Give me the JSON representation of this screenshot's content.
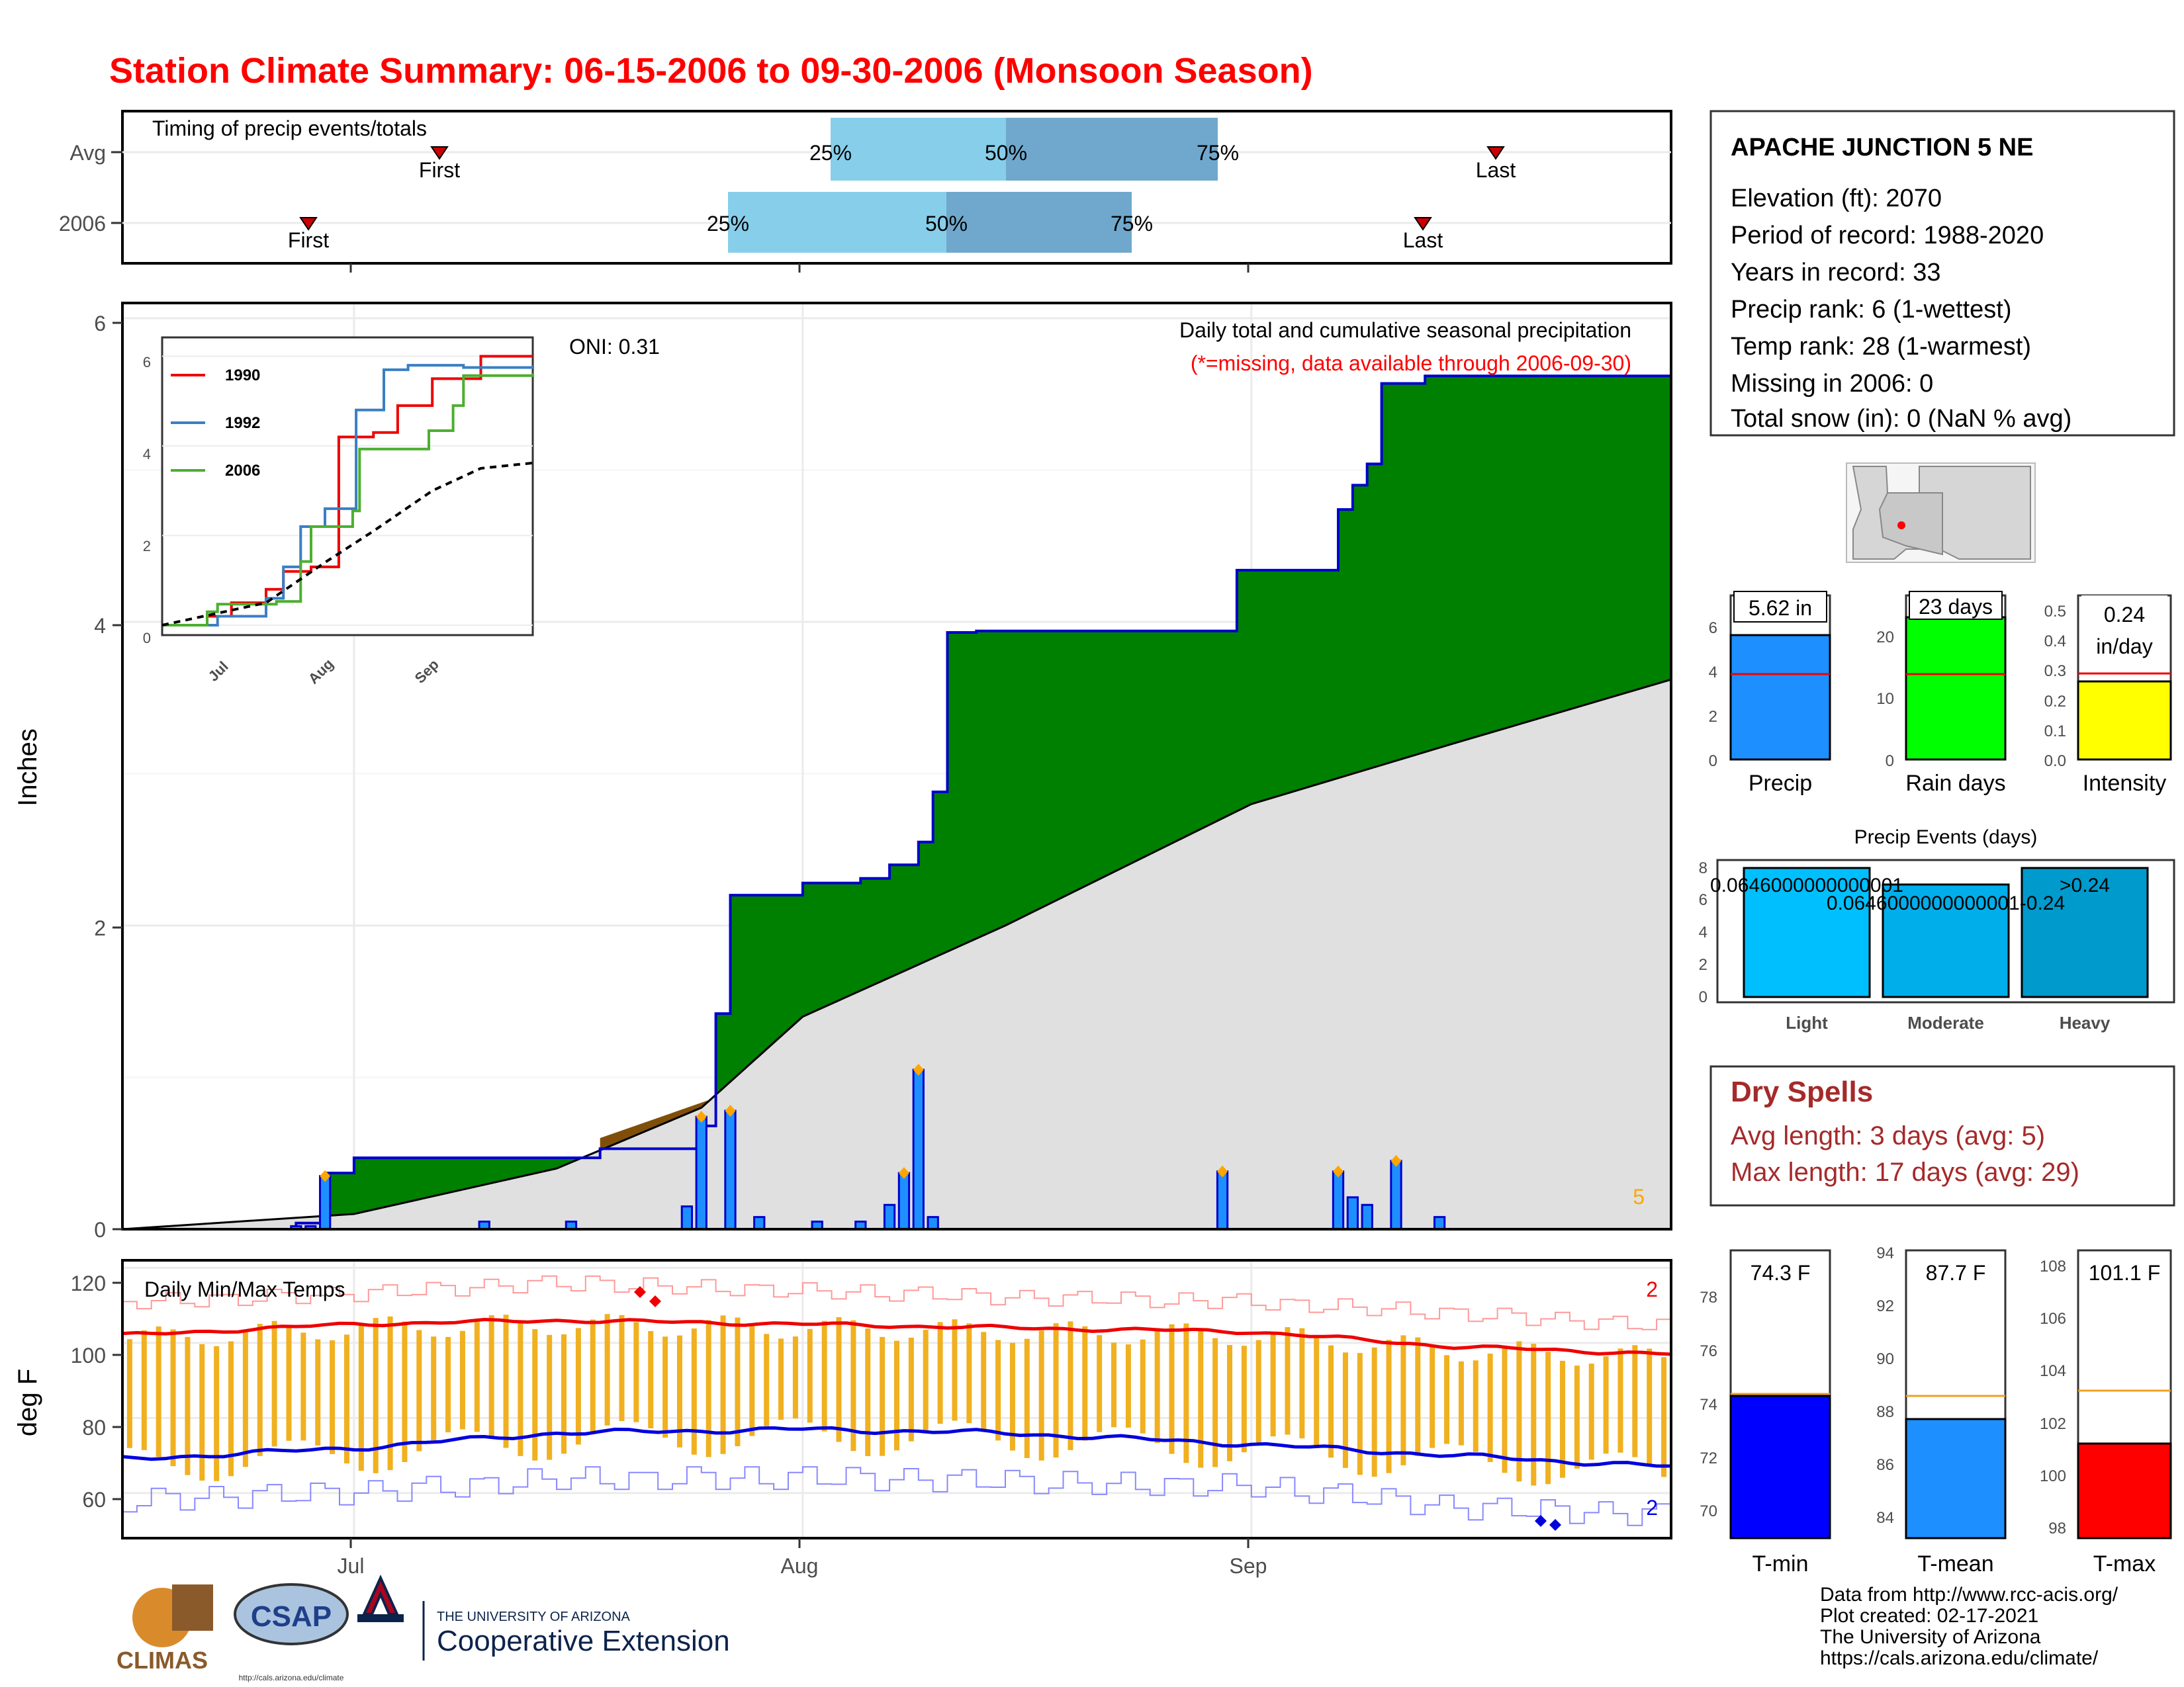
{
  "page_title": "Station Climate Summary: 06-15-2006 to 09-30-2006 (Monsoon Season)",
  "colors": {
    "title": "#ff0000",
    "cumulative_fill": "#008000",
    "deficit_fill": "#7f4f0a",
    "average_fill": "#e0e0e0",
    "daily_bar": "#1e8fff",
    "temp_bar": "#f0b020",
    "tmax_line": "#ee0000",
    "tmin_line": "#0000dd",
    "quartile_light": "#87ceeb",
    "quartile_dark": "#6fa8cc",
    "dry_spell_text": "#a52a2a"
  },
  "timing_panel": {
    "title": "Timing of precip events/totals",
    "row_labels": [
      "Avg",
      "2006"
    ],
    "avg": {
      "q25": "25%",
      "q50": "50%",
      "q75": "75%",
      "first": "First",
      "last": "Last"
    },
    "year": {
      "q25": "25%",
      "q50": "50%",
      "q75": "75%",
      "first": "First",
      "last": "Last"
    }
  },
  "precip_panel": {
    "ylabel": "Inches",
    "oni": "ONI: 0.31",
    "caption": "Daily total and cumulative seasonal precipitation",
    "subcaption": "(*=missing, data available through 2006-09-30)",
    "count_label": "5",
    "yticks": [
      "0",
      "2",
      "4",
      "6"
    ],
    "inset_legend": [
      "1990",
      "1992",
      "2006"
    ],
    "inset_yticks": [
      "0",
      "2",
      "4",
      "6"
    ],
    "inset_xticks": [
      "Jul",
      "Aug",
      "Sep"
    ]
  },
  "temp_panel": {
    "title": "Daily Min/Max Temps",
    "ylabel": "deg F",
    "yticks": [
      "60",
      "80",
      "100",
      "120"
    ],
    "record_high_count": "2",
    "record_low_count": "2"
  },
  "x_axis": {
    "labels": [
      "Jul",
      "Aug",
      "Sep"
    ]
  },
  "station": {
    "name": "APACHE JUNCTION 5 NE",
    "lines": [
      "Elevation (ft): 2070",
      "Period of record: 1988-2020",
      "Years in record: 33",
      "Precip rank: 6 (1-wettest)",
      "Temp rank: 28 (1-warmest)",
      "Missing in 2006: 0",
      "Total snow (in): 0 (NaN % avg)"
    ]
  },
  "summary_bars": {
    "precip": {
      "label": "Precip",
      "value_text": "5.62 in",
      "yticks": [
        "0",
        "2",
        "4",
        "6"
      ]
    },
    "rain_days": {
      "label": "Rain days",
      "value_text": "23 days",
      "yticks": [
        "0",
        "10",
        "20"
      ]
    },
    "intensity": {
      "label": "Intensity",
      "value_text": "0.24",
      "unit": "in/day",
      "yticks": [
        "0.0",
        "0.1",
        "0.2",
        "0.3",
        "0.4",
        "0.5"
      ]
    }
  },
  "events_panel": {
    "title": "Precip Events (days)",
    "yticks": [
      "0",
      "2",
      "4",
      "6",
      "8"
    ],
    "categories": [
      "Light",
      "Moderate",
      "Heavy"
    ],
    "bar_labels": [
      "0.0646000000000001",
      "0.0646000000000001-0.24",
      ">0.24"
    ]
  },
  "dry_spells": {
    "title": "Dry Spells",
    "avg": "Avg length: 3 days (avg: 5)",
    "max": "Max length: 17 days (avg: 29)"
  },
  "temp_bars": {
    "tmin": {
      "label": "T-min",
      "value_text": "74.3 F",
      "yticks": [
        "70",
        "72",
        "74",
        "76",
        "78"
      ]
    },
    "tmean": {
      "label": "T-mean",
      "value_text": "87.7 F",
      "yticks": [
        "84",
        "86",
        "88",
        "90",
        "92",
        "94"
      ]
    },
    "tmax": {
      "label": "T-max",
      "value_text": "101.1 F",
      "yticks": [
        "98",
        "100",
        "102",
        "104",
        "106",
        "108"
      ]
    }
  },
  "logos": {
    "climas": "CLIMAS",
    "csap": "CSAP",
    "csap_url": "http://cals.arizona.edu/climate",
    "ua_small": "THE UNIVERSITY OF ARIZONA",
    "ua_big": "Cooperative Extension"
  },
  "credits": [
    "Data from http://www.rcc-acis.org/",
    "Plot created: 02-17-2021",
    "The University of Arizona",
    "https://cals.arizona.edu/climate/"
  ],
  "chart_data": [
    {
      "type": "area",
      "title": "Daily total and cumulative seasonal precipitation",
      "ylabel": "Inches",
      "ylim": [
        0,
        6.1
      ],
      "x_range": [
        "2006-06-15",
        "2006-09-30"
      ],
      "series": [
        {
          "name": "2006",
          "days": [
            "2006-06-15",
            "2006-06-27",
            "2006-06-29",
            "2006-07-01",
            "2006-07-03",
            "2006-07-18",
            "2006-07-25",
            "2006-07-26",
            "2006-07-27",
            "2006-08-01",
            "2006-08-05",
            "2006-08-07",
            "2006-08-09",
            "2006-08-10",
            "2006-08-11",
            "2006-08-12",
            "2006-08-13",
            "2006-08-31",
            "2006-09-07",
            "2006-09-08",
            "2006-09-09",
            "2006-09-10",
            "2006-09-13",
            "2006-09-16",
            "2006-09-30"
          ],
          "values": [
            0.0,
            0.04,
            0.37,
            0.47,
            0.47,
            0.53,
            0.68,
            1.42,
            2.2,
            2.28,
            2.31,
            2.4,
            2.55,
            2.88,
            3.93,
            3.93,
            3.94,
            4.34,
            4.74,
            4.9,
            5.04,
            5.57,
            5.62,
            5.62,
            5.62
          ]
        },
        {
          "name": "Average",
          "days": [
            "2006-06-15",
            "2006-07-01",
            "2006-07-15",
            "2006-07-25",
            "2006-08-01",
            "2006-08-15",
            "2006-09-01",
            "2006-09-15",
            "2006-09-30"
          ],
          "values": [
            0.0,
            0.1,
            0.4,
            0.8,
            1.4,
            2.0,
            2.8,
            3.2,
            3.62
          ]
        }
      ],
      "daily_bars": {
        "days": [
          "2006-06-27",
          "2006-06-28",
          "2006-06-29",
          "2006-07-10",
          "2006-07-16",
          "2006-07-24",
          "2006-07-25",
          "2006-07-27",
          "2006-07-29",
          "2006-08-02",
          "2006-08-05",
          "2006-08-07",
          "2006-08-08",
          "2006-08-09",
          "2006-08-10",
          "2006-08-30",
          "2006-09-07",
          "2006-09-08",
          "2006-09-09",
          "2006-09-11",
          "2006-09-14"
        ],
        "values": [
          0.02,
          0.02,
          0.35,
          0.05,
          0.05,
          0.15,
          0.74,
          0.78,
          0.08,
          0.05,
          0.05,
          0.16,
          0.37,
          1.05,
          0.08,
          0.38,
          0.38,
          0.21,
          0.16,
          0.45,
          0.08
        ]
      }
    },
    {
      "type": "line",
      "title": "",
      "x_range": [
        "2006-06-15",
        "2006-09-30"
      ],
      "ylim": [
        0,
        6
      ],
      "series": [
        {
          "name": "1990",
          "days": [
            "2006-06-15",
            "2006-06-28",
            "2006-07-05",
            "2006-07-15",
            "2006-07-20",
            "2006-07-28",
            "2006-08-05",
            "2006-08-15",
            "2006-08-22",
            "2006-09-01",
            "2006-09-15",
            "2006-09-30"
          ],
          "values": [
            0.0,
            0.2,
            0.5,
            0.8,
            1.2,
            1.3,
            4.2,
            4.3,
            4.9,
            5.5,
            6.0,
            6.0
          ]
        },
        {
          "name": "1992",
          "days": [
            "2006-06-15",
            "2006-07-01",
            "2006-07-15",
            "2006-07-20",
            "2006-07-25",
            "2006-08-01",
            "2006-08-10",
            "2006-08-18",
            "2006-08-25",
            "2006-09-10",
            "2006-09-30"
          ],
          "values": [
            0.0,
            0.2,
            0.6,
            1.3,
            2.2,
            2.6,
            4.8,
            5.7,
            5.8,
            5.75,
            5.8
          ]
        },
        {
          "name": "2006",
          "days": [
            "2006-06-15",
            "2006-06-28",
            "2006-07-01",
            "2006-07-18",
            "2006-07-25",
            "2006-07-28",
            "2006-08-09",
            "2006-08-11",
            "2006-08-31",
            "2006-09-07",
            "2006-09-10",
            "2006-09-30"
          ],
          "values": [
            0.0,
            0.3,
            0.47,
            0.53,
            1.42,
            2.2,
            2.55,
            3.93,
            4.34,
            4.9,
            5.57,
            5.62
          ]
        },
        {
          "name": "Average",
          "days": [
            "2006-06-15",
            "2006-07-15",
            "2006-08-01",
            "2006-08-15",
            "2006-09-01",
            "2006-09-15",
            "2006-09-30"
          ],
          "values": [
            0.0,
            0.5,
            1.4,
            2.1,
            3.0,
            3.5,
            3.62
          ]
        }
      ]
    },
    {
      "type": "bar",
      "title": "Daily Min/Max Temps",
      "ylabel": "deg F",
      "ylim": [
        48,
        122
      ],
      "x_range": [
        "2006-06-15",
        "2006-09-30"
      ],
      "avg_tmax": {
        "days": [
          "2006-06-15",
          "2006-07-01",
          "2006-07-15",
          "2006-08-01",
          "2006-08-15",
          "2006-09-01",
          "2006-09-15",
          "2006-09-30"
        ],
        "values": [
          102,
          105,
          106,
          105,
          104,
          103,
          99,
          97
        ]
      },
      "avg_tmin": {
        "days": [
          "2006-06-15",
          "2006-07-01",
          "2006-07-15",
          "2006-08-01",
          "2006-08-15",
          "2006-09-01",
          "2006-09-15",
          "2006-09-30"
        ],
        "values": [
          69,
          72,
          76,
          77,
          76,
          73,
          70,
          67
        ]
      },
      "record_high": {
        "days": [
          "2006-06-15",
          "2006-07-01",
          "2006-07-15",
          "2006-08-01",
          "2006-08-15",
          "2006-09-01",
          "2006-09-15",
          "2006-09-30"
        ],
        "values": [
          111,
          113,
          116,
          114,
          112,
          111,
          108,
          104
        ]
      },
      "record_low": {
        "days": [
          "2006-06-15",
          "2006-07-01",
          "2006-07-15",
          "2006-08-01",
          "2006-08-15",
          "2006-09-01",
          "2006-09-15",
          "2006-09-30"
        ],
        "values": [
          58,
          60,
          64,
          64,
          63,
          62,
          56,
          54
        ]
      }
    },
    {
      "type": "bar",
      "categories": [
        "Precip",
        "Rain days",
        "Intensity"
      ],
      "values": [
        5.62,
        23,
        0.24
      ],
      "averages": [
        3.9,
        14,
        0.27
      ]
    },
    {
      "type": "bar",
      "title": "Precip Events (days)",
      "categories": [
        "Light",
        "Moderate",
        "Heavy"
      ],
      "values": [
        8,
        7,
        8
      ],
      "ylim": [
        0,
        8.5
      ]
    },
    {
      "type": "bar",
      "categories": [
        "T-min",
        "T-mean",
        "T-max"
      ],
      "values": [
        74.3,
        87.7,
        101.1
      ],
      "averages": [
        74.4,
        88.6,
        103.1
      ]
    }
  ]
}
